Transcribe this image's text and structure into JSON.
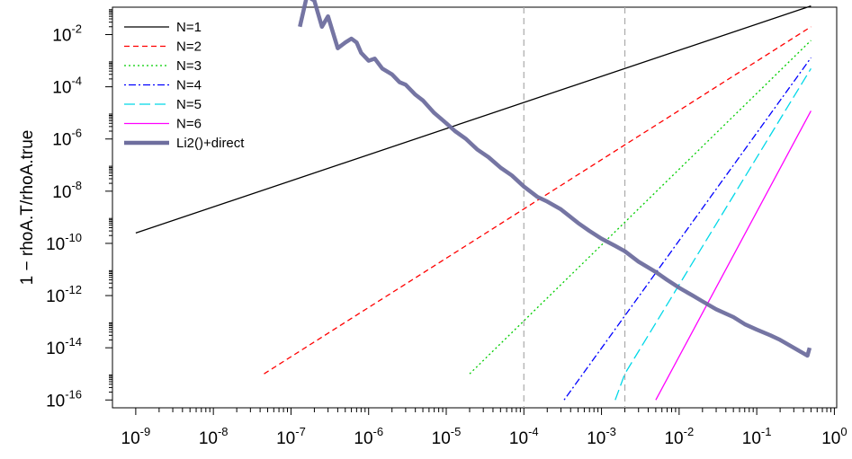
{
  "chart_data": {
    "type": "line",
    "title": "",
    "xlabel": "",
    "ylabel": "1 − rhoA.T/rhoA.true",
    "x_scale": "log10",
    "y_scale": "log10",
    "xlim": [
      1e-09,
      1
    ],
    "ylim": [
      1e-16,
      1
    ],
    "x_ticks": [
      {
        "base": "10",
        "exp": "-9",
        "value": 1e-09
      },
      {
        "base": "10",
        "exp": "-8",
        "value": 1e-08
      },
      {
        "base": "10",
        "exp": "-7",
        "value": 1e-07
      },
      {
        "base": "10",
        "exp": "-6",
        "value": 1e-06
      },
      {
        "base": "10",
        "exp": "-5",
        "value": 1e-05
      },
      {
        "base": "10",
        "exp": "-4",
        "value": 0.0001
      },
      {
        "base": "10",
        "exp": "-3",
        "value": 0.001
      },
      {
        "base": "10",
        "exp": "-2",
        "value": 0.01
      },
      {
        "base": "10",
        "exp": "-1",
        "value": 0.1
      },
      {
        "base": "10",
        "exp": "0",
        "value": 1
      }
    ],
    "y_ticks": [
      {
        "base": "10",
        "exp": "-16",
        "value": 1e-16
      },
      {
        "base": "10",
        "exp": "-14",
        "value": 1e-14
      },
      {
        "base": "10",
        "exp": "-12",
        "value": 1e-12
      },
      {
        "base": "10",
        "exp": "-10",
        "value": 1e-10
      },
      {
        "base": "10",
        "exp": "-8",
        "value": 1e-08
      },
      {
        "base": "10",
        "exp": "-6",
        "value": 1e-06
      },
      {
        "base": "10",
        "exp": "-4",
        "value": 0.0001
      },
      {
        "base": "10",
        "exp": "-2",
        "value": 0.01
      }
    ],
    "vlines": [
      0.0001,
      0.002
    ],
    "legend_position": "top-left",
    "series": [
      {
        "name": "N=1",
        "color": "#000000",
        "style": "solid",
        "points": [
          [
            1e-09,
            2.5e-10
          ],
          [
            0.5,
            0.125
          ]
        ]
      },
      {
        "name": "N=2",
        "color": "#ff0000",
        "style": "dashed",
        "points": [
          [
            4.5e-08,
            1e-15
          ],
          [
            0.5,
            0.02
          ]
        ]
      },
      {
        "name": "N=3",
        "color": "#00cd00",
        "style": "dotted",
        "points": [
          [
            2e-05,
            1e-15
          ],
          [
            0.5,
            0.006
          ]
        ]
      },
      {
        "name": "N=4",
        "color": "#0000ff",
        "style": "dotdash",
        "points": [
          [
            0.00033,
            1e-16
          ],
          [
            0.5,
            0.0013
          ]
        ]
      },
      {
        "name": "N=5",
        "color": "#00d8e8",
        "style": "longdash",
        "points": [
          [
            0.0015,
            1e-16
          ],
          [
            0.002,
            1e-15
          ],
          [
            0.5,
            0.0005
          ]
        ]
      },
      {
        "name": "N=6",
        "color": "#ff00ff",
        "style": "solid",
        "points": [
          [
            0.005,
            1e-16
          ],
          [
            0.5,
            1.2e-05
          ]
        ]
      },
      {
        "name": "Li2()+direct",
        "color": "#6e6e9e",
        "style": "thick",
        "points": [
          [
            1.3e-07,
            0.02
          ],
          [
            1.6e-07,
            0.3
          ],
          [
            2e-07,
            0.2
          ],
          [
            2.5e-07,
            0.02
          ],
          [
            3e-07,
            0.05
          ],
          [
            4e-07,
            0.003
          ],
          [
            5e-07,
            0.005
          ],
          [
            6e-07,
            0.007
          ],
          [
            7e-07,
            0.005
          ],
          [
            8e-07,
            0.002
          ],
          [
            1e-06,
            0.001
          ],
          [
            1.2e-06,
            0.0012
          ],
          [
            1.5e-06,
            0.0005
          ],
          [
            2e-06,
            0.0003
          ],
          [
            2.5e-06,
            0.00015
          ],
          [
            3e-06,
            0.00012
          ],
          [
            4e-06,
            5e-05
          ],
          [
            5e-06,
            3e-05
          ],
          [
            7e-06,
            1e-05
          ],
          [
            1e-05,
            4e-06
          ],
          [
            1.3e-05,
            2e-06
          ],
          [
            1.8e-05,
            1e-06
          ],
          [
            2.5e-05,
            4e-07
          ],
          [
            3.5e-05,
            2e-07
          ],
          [
            5e-05,
            8e-08
          ],
          [
            7e-05,
            4e-08
          ],
          [
            0.0001,
            1.5e-08
          ],
          [
            0.00015,
            6e-09
          ],
          [
            0.0002,
            4e-09
          ],
          [
            0.0003,
            2e-09
          ],
          [
            0.0005,
            6e-10
          ],
          [
            0.0007,
            3e-10
          ],
          [
            0.001,
            1.5e-10
          ],
          [
            0.0015,
            8e-11
          ],
          [
            0.002,
            5e-11
          ],
          [
            0.003,
            2e-11
          ],
          [
            0.005,
            8e-12
          ],
          [
            0.007,
            4e-12
          ],
          [
            0.01,
            2e-12
          ],
          [
            0.015,
            1e-12
          ],
          [
            0.02,
            6e-13
          ],
          [
            0.03,
            3e-13
          ],
          [
            0.05,
            1.5e-13
          ],
          [
            0.07,
            8e-14
          ],
          [
            0.1,
            5e-14
          ],
          [
            0.15,
            3e-14
          ],
          [
            0.2,
            2e-14
          ],
          [
            0.3,
            1e-14
          ],
          [
            0.45,
            5e-15
          ],
          [
            0.48,
            1e-14
          ]
        ]
      }
    ]
  }
}
